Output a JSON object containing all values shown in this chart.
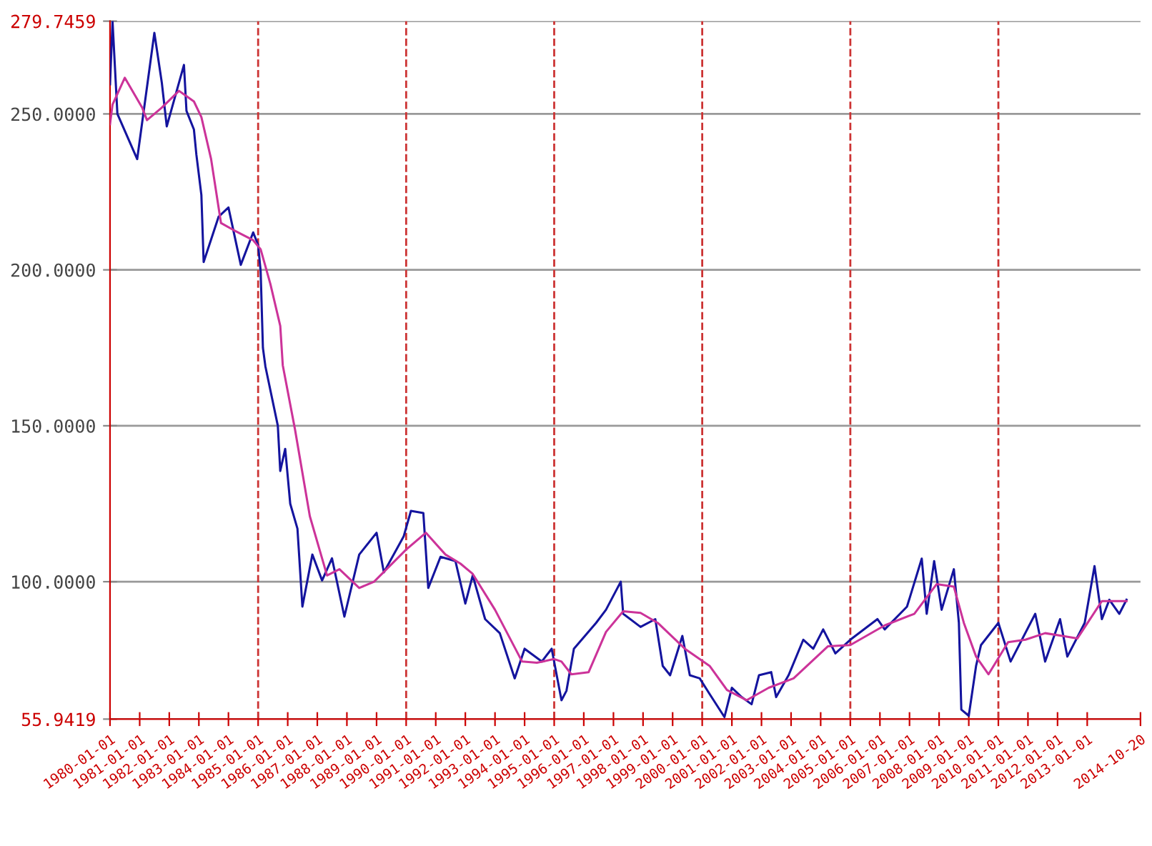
{
  "chart_data": {
    "type": "line",
    "series": [
      {
        "color": "#14149e",
        "x": [
          "1980-01",
          "1980-02",
          "1980-04",
          "1980-12",
          "1981-07",
          "1981-10",
          "1981-12",
          "1982-07",
          "1982-08",
          "1982-11",
          "1982-12",
          "1983-02",
          "1983-03",
          "1983-09",
          "1984-01",
          "1984-06",
          "1984-11",
          "1985-01",
          "1985-02",
          "1985-03",
          "1985-04",
          "1985-09",
          "1985-10",
          "1985-12",
          "1986-02",
          "1986-05",
          "1986-07",
          "1986-11",
          "1987-03",
          "1987-07",
          "1987-12",
          "1988-06",
          "1989-01",
          "1989-04",
          "1989-12",
          "1990-03",
          "1990-08",
          "1990-10",
          "1991-03",
          "1991-09",
          "1992-01",
          "1992-04",
          "1992-09",
          "1993-03",
          "1993-09",
          "1994-01",
          "1994-08",
          "1994-12",
          "1995-04",
          "1995-06",
          "1995-09",
          "1996-06",
          "1996-10",
          "1997-04",
          "1997-05",
          "1997-12",
          "1998-06",
          "1998-09",
          "1998-12",
          "1999-05",
          "1999-08",
          "1999-12",
          "2000-04",
          "2000-10",
          "2001-01",
          "2001-05",
          "2001-09",
          "2001-12",
          "2002-05",
          "2002-07",
          "2002-12",
          "2003-06",
          "2003-10",
          "2004-02",
          "2004-07",
          "2005-01",
          "2005-12",
          "2006-03",
          "2006-12",
          "2007-06",
          "2007-08",
          "2007-11",
          "2008-02",
          "2008-07",
          "2008-09",
          "2008-10",
          "2009-01",
          "2009-04",
          "2009-06",
          "2010-01",
          "2010-06",
          "2011-04",
          "2011-08",
          "2012-02",
          "2012-05",
          "2012-12",
          "2013-04",
          "2013-07",
          "2013-10",
          "2014-02",
          "2014-05"
        ],
        "values": [
          259.5,
          279.7,
          250,
          235.5,
          276,
          260,
          246,
          265.7,
          251,
          245,
          237,
          224,
          202.5,
          217,
          220,
          201.6,
          212,
          208,
          199.6,
          175,
          169,
          150,
          135.5,
          142.6,
          125,
          117,
          92,
          108.7,
          100.4,
          107.5,
          88.8,
          108.7,
          115.7,
          103,
          114.5,
          122.7,
          122,
          98,
          108,
          106.6,
          93,
          102,
          88,
          83.5,
          69,
          78.5,
          74.4,
          78.5,
          62,
          65,
          78.5,
          86.8,
          91,
          100,
          89.7,
          85.5,
          88,
          73,
          70,
          82.6,
          70,
          69,
          64,
          56.6,
          66,
          63,
          60.7,
          70,
          71,
          63,
          70,
          81.4,
          78.5,
          84.7,
          77,
          81.4,
          88,
          84.7,
          92,
          107.4,
          89.7,
          106.6,
          91,
          104,
          86.8,
          59,
          57,
          73,
          79.7,
          86.8,
          74.4,
          89.7,
          74.4,
          88,
          76,
          86.8,
          105,
          88,
          94.2,
          89.7,
          94.2
        ]
      },
      {
        "color": "#cc3399",
        "x": [
          "1980-01",
          "1980-02",
          "1980-07",
          "1981-02",
          "1981-04",
          "1981-10",
          "1982-05",
          "1982-11",
          "1983-02",
          "1983-06",
          "1983-10",
          "1984-03",
          "1984-11",
          "1985-02",
          "1985-06",
          "1985-10",
          "1985-11",
          "1986-04",
          "1986-10",
          "1987-05",
          "1987-10",
          "1988-06",
          "1988-12",
          "1990-01",
          "1990-09",
          "1991-05",
          "1991-11",
          "1992-04",
          "1993-01",
          "1993-12",
          "1994-06",
          "1995-01",
          "1995-04",
          "1995-08",
          "1996-03",
          "1996-10",
          "1997-05",
          "1997-12",
          "1998-07",
          "1999-06",
          "2000-04",
          "2000-11",
          "2001-07",
          "2002-04",
          "2003-02",
          "2004-04",
          "2005-01",
          "2006-03",
          "2007-03",
          "2007-12",
          "2008-07",
          "2008-11",
          "2009-04",
          "2009-09",
          "2010-05",
          "2010-12",
          "2011-08",
          "2012-03",
          "2012-09",
          "2013-07",
          "2014-05"
        ],
        "values": [
          246.7,
          253,
          261.6,
          252,
          248,
          252,
          257.4,
          254,
          249,
          235.5,
          215,
          212.8,
          209.5,
          206.6,
          195.5,
          182,
          169.4,
          148.8,
          121,
          102,
          104,
          98,
          100,
          110.3,
          115.7,
          108.7,
          105.8,
          102.5,
          91,
          74.4,
          74,
          75.2,
          74.4,
          70.3,
          71,
          83.9,
          90.5,
          90,
          86.8,
          78.5,
          73,
          65.3,
          62,
          66,
          69,
          79.3,
          79.7,
          86,
          89.7,
          99.2,
          98.4,
          86.8,
          76,
          70.3,
          80.6,
          81.4,
          83.5,
          82.6,
          81.8,
          93.8,
          93.8
        ]
      }
    ],
    "xlim": [
      "1980-01-01",
      "2014-10-20"
    ],
    "xticks": [
      "1980-01-01",
      "1981-01-01",
      "1982-01-01",
      "1983-01-01",
      "1984-01-01",
      "1985-01-01",
      "1986-01-01",
      "1987-01-01",
      "1988-01-01",
      "1989-01-01",
      "1990-01-01",
      "1991-01-01",
      "1992-01-01",
      "1993-01-01",
      "1994-01-01",
      "1995-01-01",
      "1996-01-01",
      "1997-01-01",
      "1998-01-01",
      "1999-01-01",
      "2000-01-01",
      "2001-01-01",
      "2002-01-01",
      "2003-01-01",
      "2004-01-01",
      "2005-01-01",
      "2006-01-01",
      "2007-01-01",
      "2008-01-01",
      "2009-01-01",
      "2010-01-01",
      "2011-01-01",
      "2012-01-01",
      "2013-01-01",
      "2014-10-20"
    ],
    "ylim": [
      55.9419,
      279.7459
    ],
    "yticks": [
      {
        "value": 55.9419,
        "label": "55.9419"
      },
      {
        "value": 100,
        "label": "100.0000"
      },
      {
        "value": 150,
        "label": "150.0000"
      },
      {
        "value": 200,
        "label": "200.0000"
      },
      {
        "value": 250,
        "label": "250.0000"
      },
      {
        "value": 279.7459,
        "label": "279.7459"
      }
    ],
    "grid": "y",
    "ref_lines": [
      {
        "axis": "x",
        "value": "1985-01-01",
        "color": "#cc3333",
        "line_style": "dashed"
      },
      {
        "axis": "x",
        "value": "1990-01-01",
        "color": "#cc3333",
        "line_style": "dashed"
      },
      {
        "axis": "x",
        "value": "1995-01-01",
        "color": "#cc3333",
        "line_style": "dashed"
      },
      {
        "axis": "x",
        "value": "2000-01-01",
        "color": "#cc3333",
        "line_style": "dashed"
      },
      {
        "axis": "x",
        "value": "2005-01-01",
        "color": "#cc3333",
        "line_style": "dashed"
      },
      {
        "axis": "x",
        "value": "2010-01-01",
        "color": "#cc3333",
        "line_style": "dashed"
      }
    ],
    "marker": "none",
    "line_style": "solid"
  }
}
